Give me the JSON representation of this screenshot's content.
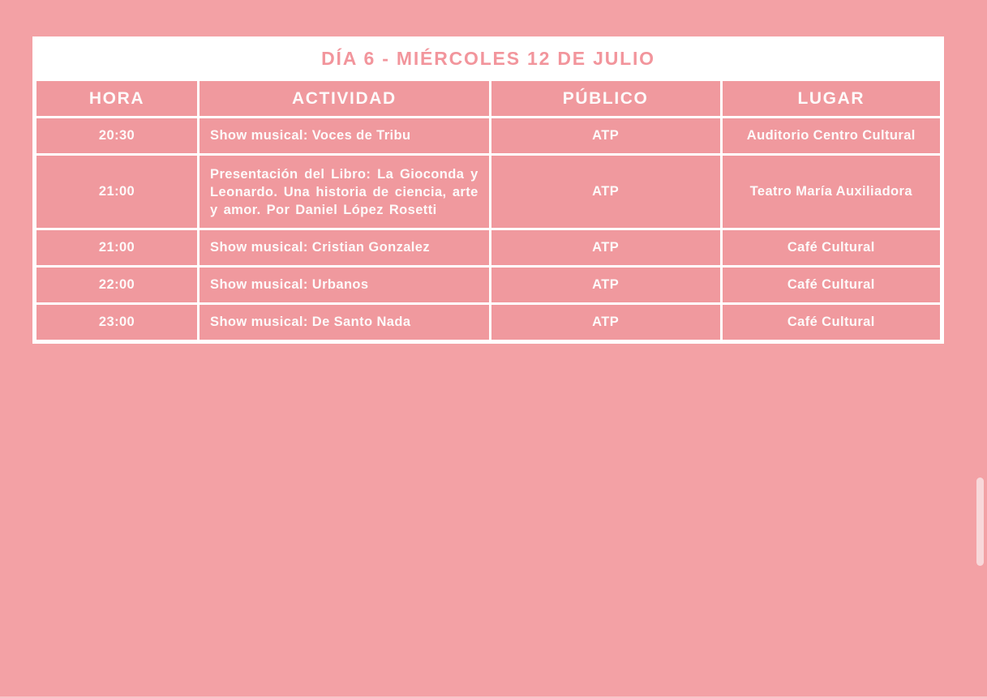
{
  "colors": {
    "page_background": "#f3a1a5",
    "cell_background": "#f0999e",
    "border_white": "#ffffff",
    "title_text": "#f2959c",
    "cell_text": "#fdfafa",
    "scrollbar_thumb": "#f8d8da"
  },
  "table": {
    "title": "DÍA 6 - MIÉRCOLES 12 DE JULIO",
    "columns": [
      "HORA",
      "ACTIVIDAD",
      "PÚBLICO",
      "LUGAR"
    ],
    "rows": [
      {
        "hora": "20:30",
        "actividad": "Show musical: Voces de Tribu",
        "publico": "ATP",
        "lugar": "Auditorio Centro Cultural"
      },
      {
        "hora": "21:00",
        "actividad": "Presentación del Libro: La Gioconda y Leonardo. Una historia de ciencia, arte y amor. Por Daniel López Rosetti",
        "publico": "ATP",
        "lugar": "Teatro María Auxiliadora"
      },
      {
        "hora": "21:00",
        "actividad": "Show musical: Cristian Gonzalez",
        "publico": "ATP",
        "lugar": "Café Cultural"
      },
      {
        "hora": "22:00",
        "actividad": "Show musical: Urbanos",
        "publico": "ATP",
        "lugar": "Café Cultural"
      },
      {
        "hora": "23:00",
        "actividad": "Show musical: De Santo Nada",
        "publico": "ATP",
        "lugar": "Café Cultural"
      }
    ]
  }
}
